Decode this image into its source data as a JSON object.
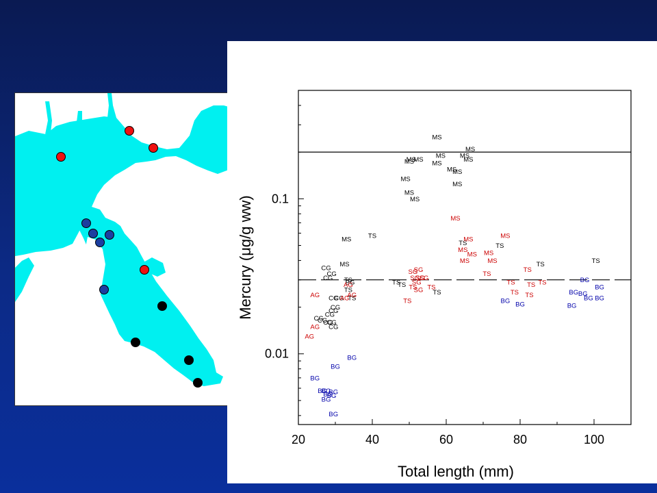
{
  "colors": {
    "water": "#00f0f0",
    "red_site": "#ee1111",
    "blue_site": "#1c3ea0",
    "black_site": "#000000",
    "black_label": "#000000",
    "red_label": "#cc0000",
    "blue_label": "#0000aa"
  },
  "map": {
    "sites": [
      {
        "color": "red"
      },
      {
        "color": "red"
      },
      {
        "color": "red"
      },
      {
        "color": "red"
      },
      {
        "color": "blue"
      },
      {
        "color": "blue"
      },
      {
        "color": "blue"
      },
      {
        "color": "blue"
      },
      {
        "color": "blue"
      },
      {
        "color": "black"
      },
      {
        "color": "black"
      },
      {
        "color": "black"
      },
      {
        "color": "black"
      }
    ]
  },
  "chart_data": {
    "type": "scatter",
    "xlabel": "Total length (mm)",
    "ylabel": "Mercury (μg/g ww)",
    "xlim": [
      20,
      110
    ],
    "ylim": [
      0.0035,
      0.5
    ],
    "y_scale": "log",
    "x_ticks": [
      20,
      40,
      60,
      80,
      100
    ],
    "x_tick_labels": [
      "20",
      "40",
      "60",
      "80",
      "100"
    ],
    "y_ticks": [
      0.01,
      0.1
    ],
    "y_tick_labels": [
      "0.01",
      "0.1"
    ],
    "reference_lines": [
      {
        "y": 0.2,
        "style": "solid"
      },
      {
        "y": 0.03,
        "style": "dashed"
      }
    ],
    "series": [
      {
        "color": "black",
        "points": [
          {
            "x": 57.5,
            "y": 0.25,
            "label": "MS"
          },
          {
            "x": 65,
            "y": 0.19,
            "label": "MS"
          },
          {
            "x": 66.5,
            "y": 0.21,
            "label": "MS"
          },
          {
            "x": 50.5,
            "y": 0.18,
            "label": "MS"
          },
          {
            "x": 52.5,
            "y": 0.18,
            "label": "MS"
          },
          {
            "x": 58.5,
            "y": 0.19,
            "label": "MS"
          },
          {
            "x": 50,
            "y": 0.175,
            "label": "MS"
          },
          {
            "x": 57.5,
            "y": 0.17,
            "label": "MS"
          },
          {
            "x": 66,
            "y": 0.18,
            "label": "MS"
          },
          {
            "x": 61.5,
            "y": 0.155,
            "label": "MS"
          },
          {
            "x": 63,
            "y": 0.15,
            "label": "MS"
          },
          {
            "x": 49,
            "y": 0.135,
            "label": "MS"
          },
          {
            "x": 63,
            "y": 0.125,
            "label": "MS"
          },
          {
            "x": 50,
            "y": 0.11,
            "label": "MS"
          },
          {
            "x": 51.5,
            "y": 0.1,
            "label": "MS"
          },
          {
            "x": 33,
            "y": 0.055,
            "label": "MS"
          },
          {
            "x": 32.5,
            "y": 0.038,
            "label": "MS"
          },
          {
            "x": 40,
            "y": 0.058,
            "label": "TS"
          },
          {
            "x": 64.5,
            "y": 0.052,
            "label": "TS"
          },
          {
            "x": 74.5,
            "y": 0.05,
            "label": "TS"
          },
          {
            "x": 85.5,
            "y": 0.038,
            "label": "TS"
          },
          {
            "x": 100.5,
            "y": 0.04,
            "label": "TS"
          },
          {
            "x": 33.5,
            "y": 0.03,
            "label": "TS"
          },
          {
            "x": 46.5,
            "y": 0.029,
            "label": "TS"
          },
          {
            "x": 48,
            "y": 0.028,
            "label": "TS"
          },
          {
            "x": 33.5,
            "y": 0.026,
            "label": "TS"
          },
          {
            "x": 34.5,
            "y": 0.023,
            "label": "TS"
          },
          {
            "x": 57.5,
            "y": 0.025,
            "label": "TS"
          },
          {
            "x": 27.5,
            "y": 0.036,
            "label": "CG"
          },
          {
            "x": 29,
            "y": 0.033,
            "label": "CG"
          },
          {
            "x": 28,
            "y": 0.031,
            "label": "CG"
          },
          {
            "x": 29.5,
            "y": 0.023,
            "label": "CG"
          },
          {
            "x": 31,
            "y": 0.023,
            "label": "CG"
          },
          {
            "x": 30,
            "y": 0.02,
            "label": "CG"
          },
          {
            "x": 29.5,
            "y": 0.019,
            "label": "CG"
          },
          {
            "x": 28.5,
            "y": 0.018,
            "label": "CG"
          },
          {
            "x": 25.5,
            "y": 0.017,
            "label": "CG"
          },
          {
            "x": 26.5,
            "y": 0.0165,
            "label": "CG"
          },
          {
            "x": 28,
            "y": 0.016,
            "label": "CG"
          },
          {
            "x": 29,
            "y": 0.016,
            "label": "CG"
          },
          {
            "x": 29.5,
            "y": 0.015,
            "label": "CG"
          },
          {
            "x": 34,
            "y": 0.029,
            "label": "BG"
          }
        ]
      },
      {
        "color": "red",
        "points": [
          {
            "x": 62.5,
            "y": 0.075,
            "label": "MS"
          },
          {
            "x": 66,
            "y": 0.055,
            "label": "MS"
          },
          {
            "x": 76,
            "y": 0.058,
            "label": "MS"
          },
          {
            "x": 64.5,
            "y": 0.047,
            "label": "MS"
          },
          {
            "x": 67,
            "y": 0.044,
            "label": "MS"
          },
          {
            "x": 71.5,
            "y": 0.045,
            "label": "MS"
          },
          {
            "x": 65,
            "y": 0.04,
            "label": "MS"
          },
          {
            "x": 72.5,
            "y": 0.04,
            "label": "MS"
          },
          {
            "x": 52.5,
            "y": 0.035,
            "label": "SG"
          },
          {
            "x": 51,
            "y": 0.034,
            "label": "SG"
          },
          {
            "x": 51.5,
            "y": 0.031,
            "label": "SG"
          },
          {
            "x": 53,
            "y": 0.031,
            "label": "SG"
          },
          {
            "x": 54,
            "y": 0.031,
            "label": "SG"
          },
          {
            "x": 52,
            "y": 0.029,
            "label": "SG"
          },
          {
            "x": 52.5,
            "y": 0.026,
            "label": "SG"
          },
          {
            "x": 71,
            "y": 0.033,
            "label": "TS"
          },
          {
            "x": 82,
            "y": 0.035,
            "label": "TS"
          },
          {
            "x": 77.5,
            "y": 0.029,
            "label": "TS"
          },
          {
            "x": 83,
            "y": 0.028,
            "label": "TS"
          },
          {
            "x": 86,
            "y": 0.029,
            "label": "TS"
          },
          {
            "x": 51,
            "y": 0.027,
            "label": "TS"
          },
          {
            "x": 56,
            "y": 0.027,
            "label": "TS"
          },
          {
            "x": 78.5,
            "y": 0.025,
            "label": "TS"
          },
          {
            "x": 82.5,
            "y": 0.024,
            "label": "TS"
          },
          {
            "x": 49.5,
            "y": 0.022,
            "label": "TS"
          },
          {
            "x": 33.5,
            "y": 0.028,
            "label": "AG"
          },
          {
            "x": 24.5,
            "y": 0.024,
            "label": "AG"
          },
          {
            "x": 32.5,
            "y": 0.023,
            "label": "AG"
          },
          {
            "x": 34.5,
            "y": 0.024,
            "label": "AG"
          },
          {
            "x": 24.5,
            "y": 0.015,
            "label": "AG"
          },
          {
            "x": 23,
            "y": 0.013,
            "label": "AG"
          }
        ]
      },
      {
        "color": "blue",
        "points": [
          {
            "x": 97.5,
            "y": 0.03,
            "label": "BG"
          },
          {
            "x": 101.5,
            "y": 0.027,
            "label": "BG"
          },
          {
            "x": 94.5,
            "y": 0.025,
            "label": "BG"
          },
          {
            "x": 97,
            "y": 0.0245,
            "label": "BG"
          },
          {
            "x": 98.5,
            "y": 0.023,
            "label": "BG"
          },
          {
            "x": 101.5,
            "y": 0.023,
            "label": "BG"
          },
          {
            "x": 76,
            "y": 0.022,
            "label": "BG"
          },
          {
            "x": 80,
            "y": 0.021,
            "label": "BG"
          },
          {
            "x": 94,
            "y": 0.0205,
            "label": "BG"
          },
          {
            "x": 34.5,
            "y": 0.0095,
            "label": "BG"
          },
          {
            "x": 30,
            "y": 0.0083,
            "label": "BG"
          },
          {
            "x": 24.5,
            "y": 0.007,
            "label": "BG"
          },
          {
            "x": 26.5,
            "y": 0.0058,
            "label": "BG"
          },
          {
            "x": 27.5,
            "y": 0.0058,
            "label": "BG"
          },
          {
            "x": 29.5,
            "y": 0.0057,
            "label": "BG"
          },
          {
            "x": 28,
            "y": 0.0055,
            "label": "BG"
          },
          {
            "x": 29,
            "y": 0.0054,
            "label": "BG"
          },
          {
            "x": 27.5,
            "y": 0.0051,
            "label": "BG"
          },
          {
            "x": 29.5,
            "y": 0.0041,
            "label": "BG"
          }
        ]
      }
    ]
  }
}
